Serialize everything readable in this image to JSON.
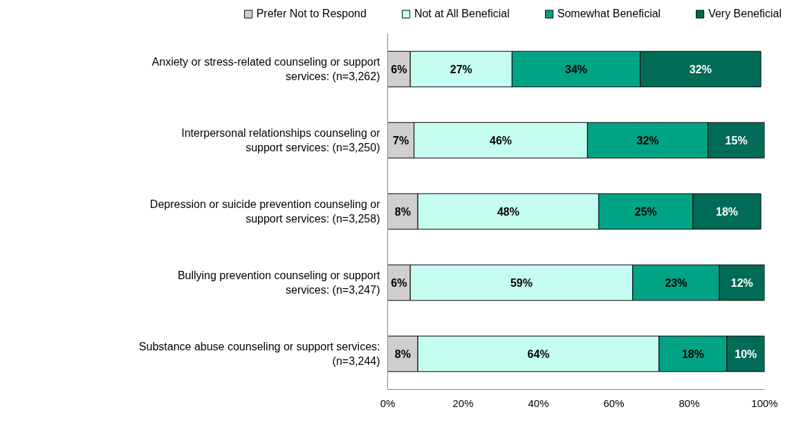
{
  "chart_data": {
    "type": "bar",
    "orientation": "horizontal",
    "stacked": true,
    "data_labels": true,
    "legend": "top",
    "grid": false,
    "categories": [
      "Anxiety or stress-related counseling or support services: (n=3,262)",
      "Interpersonal relationships counseling or support services: (n=3,250)",
      "Depression or suicide prevention counseling or support services: (n=3,258)",
      "Bullying prevention counseling or support services: (n=3,247)",
      "Substance abuse counseling or support services: (n=3,244)"
    ],
    "series": [
      {
        "name": "Prefer Not to Respond",
        "color": "#d0cece",
        "values": [
          6,
          7,
          8,
          6,
          8
        ],
        "value_labels": [
          "6%",
          "7%",
          "8%",
          "6%",
          "8%"
        ]
      },
      {
        "name": "Not at All Beneficial",
        "color": "#c5fdf1",
        "values": [
          27,
          46,
          48,
          59,
          64
        ],
        "value_labels": [
          "27%",
          "46%",
          "48%",
          "59%",
          "64%"
        ]
      },
      {
        "name": "Somewhat Beneficial",
        "color": "#00a384",
        "values": [
          34,
          32,
          25,
          23,
          18
        ],
        "value_labels": [
          "34%",
          "32%",
          "25%",
          "23%",
          "18%"
        ]
      },
      {
        "name": "Very Beneficial",
        "color": "#006b57",
        "values": [
          32,
          15,
          18,
          12,
          10
        ],
        "value_labels": [
          "32%",
          "15%",
          "18%",
          "12%",
          "10%"
        ]
      }
    ],
    "xlim": [
      0,
      100
    ],
    "xticks": [
      {
        "value": 0,
        "label": "0%"
      },
      {
        "value": 20,
        "label": "20%"
      },
      {
        "value": 40,
        "label": "40%"
      },
      {
        "value": 60,
        "label": "60%"
      },
      {
        "value": 80,
        "label": "80%"
      },
      {
        "value": 100,
        "label": "100%"
      }
    ]
  }
}
